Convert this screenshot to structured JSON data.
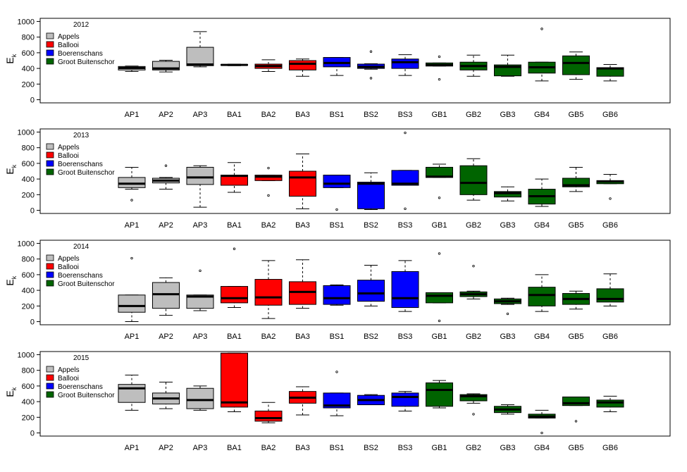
{
  "colors": {
    "Appels": "#bebebe",
    "Ballooi": "#ff0000",
    "Boerenschans": "#0000ff",
    "Groot Buitenschor": "#006400"
  },
  "chart_data": [
    {
      "type": "boxplot",
      "title": "2012",
      "ylabel": "E",
      "ylabel_sub": "k",
      "ylim": [
        -40,
        1040
      ],
      "yticks": [
        0,
        200,
        400,
        600,
        800,
        1000
      ],
      "legend": [
        "Appels",
        "Ballooi",
        "Boerenschans",
        "Groot Buitenschor"
      ],
      "legend_position": "top-left",
      "categories": [
        "AP1",
        "AP2",
        "AP3",
        "BA1",
        "BA2",
        "BA3",
        "BS1",
        "BS2",
        "BS3",
        "GB1",
        "GB2",
        "GB3",
        "GB4",
        "GB5",
        "GB6"
      ],
      "groups": [
        "Appels",
        "Appels",
        "Appels",
        "Ballooi",
        "Ballooi",
        "Ballooi",
        "Boerenschans",
        "Boerenschans",
        "Boerenschans",
        "Groot Buitenschor",
        "Groot Buitenschor",
        "Groot Buitenschor",
        "Groot Buitenschor",
        "Groot Buitenschor",
        "Groot Buitenschor"
      ],
      "boxes": [
        {
          "min": 360,
          "q1": 380,
          "median": 405,
          "q3": 425,
          "max": 430,
          "outliers": []
        },
        {
          "min": 355,
          "q1": 380,
          "median": 400,
          "q3": 490,
          "max": 505,
          "outliers": []
        },
        {
          "min": 420,
          "q1": 435,
          "median": 450,
          "q3": 670,
          "max": 870,
          "outliers": []
        },
        {
          "min": 435,
          "q1": 440,
          "median": 445,
          "q3": 450,
          "max": 455,
          "outliers": []
        },
        {
          "min": 360,
          "q1": 400,
          "median": 430,
          "q3": 455,
          "max": 510,
          "outliers": []
        },
        {
          "min": 300,
          "q1": 380,
          "median": 460,
          "q3": 500,
          "max": 520,
          "outliers": []
        },
        {
          "min": 310,
          "q1": 420,
          "median": 470,
          "q3": 540,
          "max": 540,
          "outliers": []
        },
        {
          "min": 390,
          "q1": 400,
          "median": 420,
          "q3": 455,
          "max": 460,
          "outliers": [
            615,
            275
          ]
        },
        {
          "min": 310,
          "q1": 400,
          "median": 480,
          "q3": 520,
          "max": 575,
          "outliers": []
        },
        {
          "min": 430,
          "q1": 430,
          "median": 445,
          "q3": 470,
          "max": 470,
          "outliers": [
            550,
            260
          ]
        },
        {
          "min": 300,
          "q1": 380,
          "median": 430,
          "q3": 480,
          "max": 570,
          "outliers": []
        },
        {
          "min": 300,
          "q1": 305,
          "median": 420,
          "q3": 445,
          "max": 570,
          "outliers": []
        },
        {
          "min": 240,
          "q1": 340,
          "median": 415,
          "q3": 480,
          "max": 480,
          "outliers": [
            905
          ]
        },
        {
          "min": 260,
          "q1": 320,
          "median": 470,
          "q3": 560,
          "max": 610,
          "outliers": []
        },
        {
          "min": 240,
          "q1": 300,
          "median": 400,
          "q3": 410,
          "max": 450,
          "outliers": []
        }
      ]
    },
    {
      "type": "boxplot",
      "title": "2013",
      "ylabel": "E",
      "ylabel_sub": "k",
      "ylim": [
        -40,
        1040
      ],
      "yticks": [
        0,
        200,
        400,
        600,
        800,
        1000
      ],
      "legend": [
        "Appels",
        "Ballooi",
        "Boerenschans",
        "Groot Buitenschor"
      ],
      "legend_position": "top-left",
      "categories": [
        "AP1",
        "AP2",
        "AP3",
        "BA1",
        "BA2",
        "BA3",
        "BS1",
        "BS2",
        "BS3",
        "GB1",
        "GB2",
        "GB3",
        "GB4",
        "GB5",
        "GB6"
      ],
      "groups": [
        "Appels",
        "Appels",
        "Appels",
        "Ballooi",
        "Ballooi",
        "Ballooi",
        "Boerenschans",
        "Boerenschans",
        "Boerenschans",
        "Groot Buitenschor",
        "Groot Buitenschor",
        "Groot Buitenschor",
        "Groot Buitenschor",
        "Groot Buitenschor",
        "Groot Buitenschor"
      ],
      "boxes": [
        {
          "min": 270,
          "q1": 290,
          "median": 340,
          "q3": 420,
          "max": 550,
          "outliers": [
            130
          ]
        },
        {
          "min": 270,
          "q1": 350,
          "median": 380,
          "q3": 410,
          "max": 420,
          "outliers": [
            570
          ]
        },
        {
          "min": 40,
          "q1": 330,
          "median": 420,
          "q3": 550,
          "max": 570,
          "outliers": []
        },
        {
          "min": 230,
          "q1": 320,
          "median": 440,
          "q3": 450,
          "max": 610,
          "outliers": []
        },
        {
          "min": 380,
          "q1": 380,
          "median": 430,
          "q3": 450,
          "max": 450,
          "outliers": [
            540,
            190
          ]
        },
        {
          "min": 20,
          "q1": 180,
          "median": 420,
          "q3": 500,
          "max": 720,
          "outliers": []
        },
        {
          "min": 290,
          "q1": 290,
          "median": 340,
          "q3": 450,
          "max": 450,
          "outliers": [
            10
          ]
        },
        {
          "min": 10,
          "q1": 20,
          "median": 340,
          "q3": 360,
          "max": 480,
          "outliers": []
        },
        {
          "min": 320,
          "q1": 320,
          "median": 340,
          "q3": 510,
          "max": 510,
          "outliers": [
            990,
            20
          ]
        },
        {
          "min": 420,
          "q1": 420,
          "median": 430,
          "q3": 550,
          "max": 590,
          "outliers": [
            160
          ]
        },
        {
          "min": 130,
          "q1": 200,
          "median": 350,
          "q3": 570,
          "max": 660,
          "outliers": []
        },
        {
          "min": 120,
          "q1": 170,
          "median": 220,
          "q3": 240,
          "max": 300,
          "outliers": []
        },
        {
          "min": 50,
          "q1": 80,
          "median": 180,
          "q3": 270,
          "max": 400,
          "outliers": []
        },
        {
          "min": 240,
          "q1": 300,
          "median": 320,
          "q3": 410,
          "max": 550,
          "outliers": []
        },
        {
          "min": 340,
          "q1": 340,
          "median": 370,
          "q3": 380,
          "max": 460,
          "outliers": [
            150
          ]
        }
      ]
    },
    {
      "type": "boxplot",
      "title": "2014",
      "ylabel": "E",
      "ylabel_sub": "k",
      "ylim": [
        -40,
        1040
      ],
      "yticks": [
        0,
        200,
        400,
        600,
        800,
        1000
      ],
      "legend": [
        "Appels",
        "Ballooi",
        "Boerenschans",
        "Groot Buitenschor"
      ],
      "legend_position": "top-left",
      "categories": [
        "AP1",
        "AP2",
        "AP3",
        "BA1",
        "BA2",
        "BA3",
        "BS1",
        "BS2",
        "BS3",
        "GB1",
        "GB2",
        "GB3",
        "GB4",
        "GB5",
        "GB6"
      ],
      "groups": [
        "Appels",
        "Appels",
        "Appels",
        "Ballooi",
        "Ballooi",
        "Ballooi",
        "Boerenschans",
        "Boerenschans",
        "Boerenschans",
        "Groot Buitenschor",
        "Groot Buitenschor",
        "Groot Buitenschor",
        "Groot Buitenschor",
        "Groot Buitenschor",
        "Groot Buitenschor"
      ],
      "boxes": [
        {
          "min": 0,
          "q1": 120,
          "median": 200,
          "q3": 340,
          "max": 340,
          "outliers": [
            810
          ]
        },
        {
          "min": 80,
          "q1": 170,
          "median": 350,
          "q3": 500,
          "max": 560,
          "outliers": []
        },
        {
          "min": 140,
          "q1": 170,
          "median": 320,
          "q3": 340,
          "max": 340,
          "outliers": [
            650
          ]
        },
        {
          "min": 180,
          "q1": 240,
          "median": 300,
          "q3": 450,
          "max": 450,
          "outliers": [
            930
          ]
        },
        {
          "min": 40,
          "q1": 210,
          "median": 310,
          "q3": 540,
          "max": 780,
          "outliers": []
        },
        {
          "min": 170,
          "q1": 220,
          "median": 380,
          "q3": 510,
          "max": 790,
          "outliers": []
        },
        {
          "min": 210,
          "q1": 220,
          "median": 300,
          "q3": 460,
          "max": 470,
          "outliers": []
        },
        {
          "min": 200,
          "q1": 260,
          "median": 360,
          "q3": 530,
          "max": 720,
          "outliers": []
        },
        {
          "min": 130,
          "q1": 180,
          "median": 300,
          "q3": 640,
          "max": 780,
          "outliers": []
        },
        {
          "min": 240,
          "q1": 240,
          "median": 330,
          "q3": 370,
          "max": 370,
          "outliers": [
            870,
            10
          ]
        },
        {
          "min": 290,
          "q1": 320,
          "median": 350,
          "q3": 380,
          "max": 390,
          "outliers": [
            710
          ]
        },
        {
          "min": 220,
          "q1": 230,
          "median": 260,
          "q3": 290,
          "max": 300,
          "outliers": [
            100
          ]
        },
        {
          "min": 130,
          "q1": 200,
          "median": 340,
          "q3": 440,
          "max": 600,
          "outliers": []
        },
        {
          "min": 160,
          "q1": 220,
          "median": 290,
          "q3": 360,
          "max": 390,
          "outliers": []
        },
        {
          "min": 200,
          "q1": 250,
          "median": 290,
          "q3": 420,
          "max": 610,
          "outliers": []
        }
      ]
    },
    {
      "type": "boxplot",
      "title": "2015",
      "ylabel": "E",
      "ylabel_sub": "k",
      "ylim": [
        -40,
        1040
      ],
      "yticks": [
        0,
        200,
        400,
        600,
        800,
        1000
      ],
      "legend": [
        "Appels",
        "Ballooi",
        "Boerenschans",
        "Groot Buitenschor"
      ],
      "legend_position": "top-left",
      "categories": [
        "AP1",
        "AP2",
        "AP3",
        "BA1",
        "BA2",
        "BA3",
        "BS1",
        "BS2",
        "BS3",
        "GB1",
        "GB2",
        "GB3",
        "GB4",
        "GB5",
        "GB6"
      ],
      "groups": [
        "Appels",
        "Appels",
        "Appels",
        "Ballooi",
        "Ballooi",
        "Ballooi",
        "Boerenschans",
        "Boerenschans",
        "Boerenschans",
        "Groot Buitenschor",
        "Groot Buitenschor",
        "Groot Buitenschor",
        "Groot Buitenschor",
        "Groot Buitenschor",
        "Groot Buitenschor"
      ],
      "boxes": [
        {
          "min": 290,
          "q1": 390,
          "median": 570,
          "q3": 620,
          "max": 740,
          "outliers": []
        },
        {
          "min": 310,
          "q1": 370,
          "median": 440,
          "q3": 510,
          "max": 650,
          "outliers": []
        },
        {
          "min": 290,
          "q1": 310,
          "median": 420,
          "q3": 570,
          "max": 600,
          "outliers": []
        },
        {
          "min": 270,
          "q1": 330,
          "median": 390,
          "q3": 1020,
          "max": 1020,
          "outliers": []
        },
        {
          "min": 130,
          "q1": 150,
          "median": 190,
          "q3": 280,
          "max": 390,
          "outliers": []
        },
        {
          "min": 230,
          "q1": 380,
          "median": 450,
          "q3": 530,
          "max": 590,
          "outliers": []
        },
        {
          "min": 220,
          "q1": 320,
          "median": 350,
          "q3": 510,
          "max": 510,
          "outliers": [
            780
          ]
        },
        {
          "min": 360,
          "q1": 360,
          "median": 420,
          "q3": 480,
          "max": 490,
          "outliers": []
        },
        {
          "min": 280,
          "q1": 340,
          "median": 460,
          "q3": 510,
          "max": 530,
          "outliers": []
        },
        {
          "min": 320,
          "q1": 340,
          "median": 550,
          "q3": 640,
          "max": 670,
          "outliers": []
        },
        {
          "min": 380,
          "q1": 410,
          "median": 470,
          "q3": 490,
          "max": 500,
          "outliers": [
            240
          ]
        },
        {
          "min": 240,
          "q1": 260,
          "median": 300,
          "q3": 340,
          "max": 360,
          "outliers": []
        },
        {
          "min": 190,
          "q1": 190,
          "median": 210,
          "q3": 240,
          "max": 290,
          "outliers": [
            0
          ]
        },
        {
          "min": 350,
          "q1": 350,
          "median": 380,
          "q3": 460,
          "max": 460,
          "outliers": [
            150
          ]
        },
        {
          "min": 270,
          "q1": 330,
          "median": 390,
          "q3": 420,
          "max": 470,
          "outliers": []
        }
      ]
    }
  ]
}
